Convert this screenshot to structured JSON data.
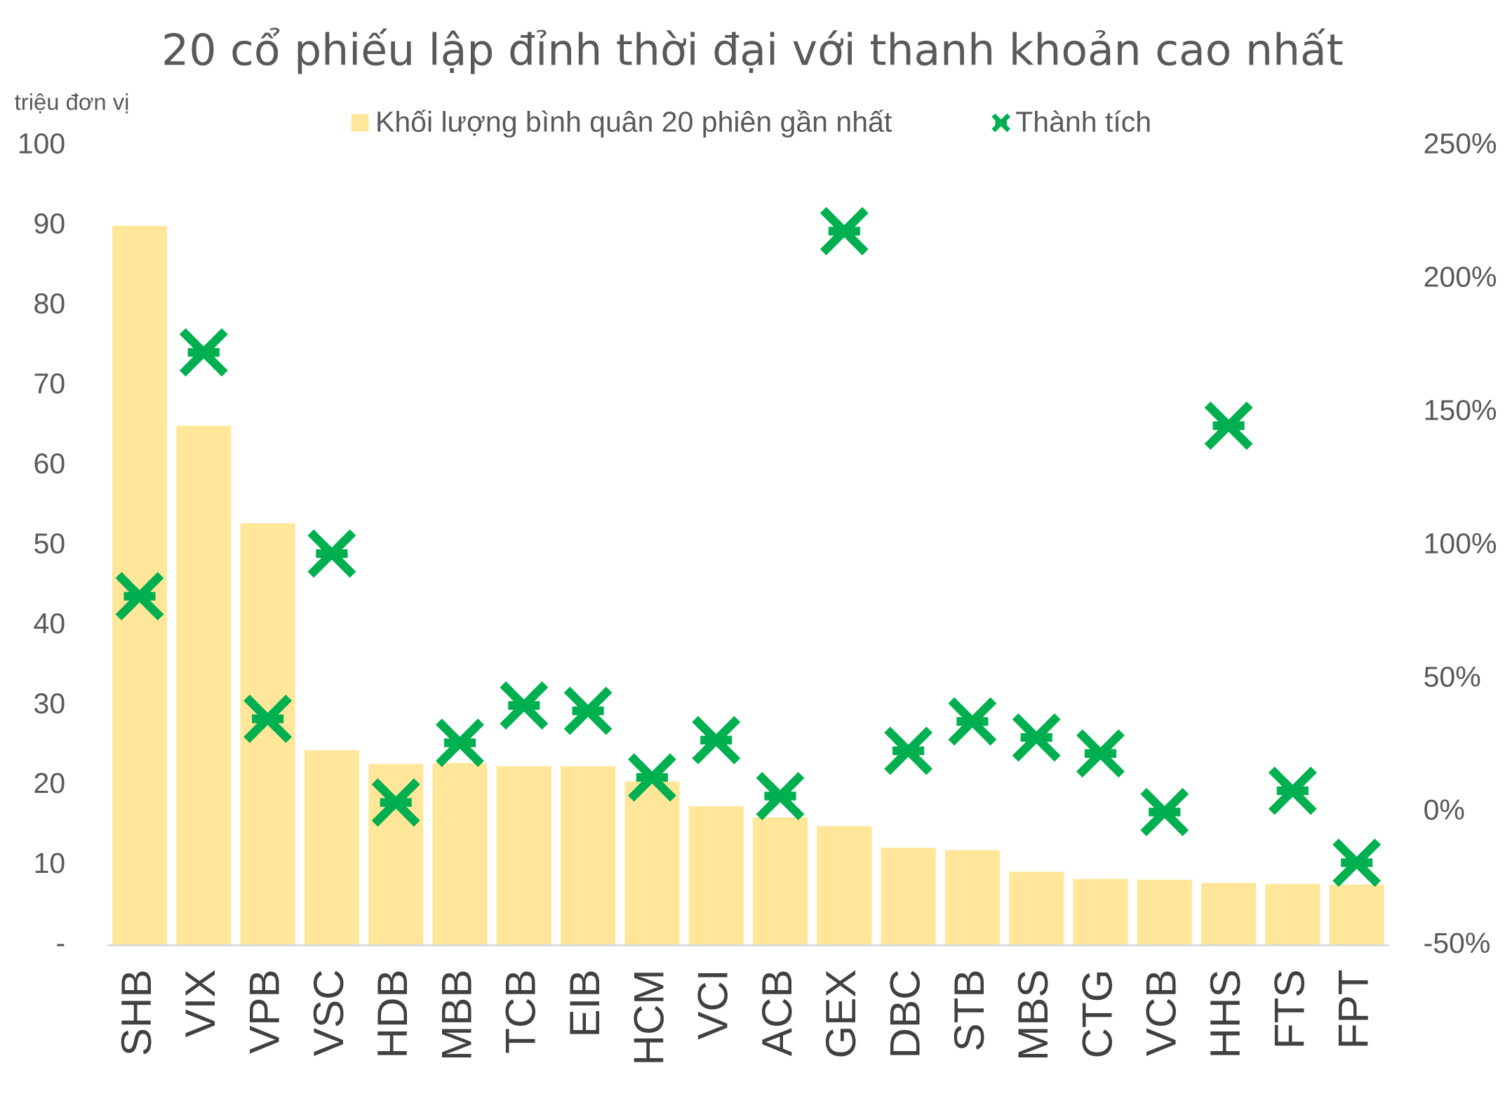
{
  "chart_data": {
    "type": "bar_scatter",
    "title": "20 cổ phiếu lập đỉnh thời đại với thanh khoản cao nhất",
    "y_label": "triệu đơn vị",
    "categories": [
      "SHB",
      "VIX",
      "VPB",
      "VSC",
      "HDB",
      "MBB",
      "TCB",
      "EIB",
      "HCM",
      "VCI",
      "ACB",
      "GEX",
      "DBC",
      "STB",
      "MBS",
      "CTG",
      "VCB",
      "HHS",
      "FTS",
      "FPT"
    ],
    "series": [
      {
        "name": "Khối lượng bình quân 20 phiên gần nhất",
        "color": "#FFE699",
        "kind": "bar",
        "values": [
          90,
          65,
          52.8,
          24.4,
          22.7,
          22.8,
          22.4,
          22.4,
          20.5,
          17.4,
          16,
          14.9,
          12.2,
          11.9,
          9.2,
          8.3,
          8.2,
          7.8,
          7.7,
          7.6
        ]
      },
      {
        "name": "Thành tích",
        "color": "#00B050",
        "kind": "marker",
        "axis": "y2",
        "values": [
          81,
          172.5,
          35,
          97,
          3.6,
          26,
          40,
          38,
          13,
          27,
          6,
          218,
          23,
          34,
          28,
          22,
          0,
          145,
          8,
          -19
        ]
      }
    ],
    "ylim": [
      0,
      100
    ],
    "yticks": [
      {
        "value": 0,
        "label": "-"
      },
      10,
      20,
      30,
      40,
      50,
      60,
      70,
      80,
      90,
      100
    ],
    "y2lim": [
      -50,
      250
    ],
    "y2ticks": [
      {
        "value": -50,
        "label": "-50%"
      },
      {
        "value": 0,
        "label": "0%"
      },
      {
        "value": 50,
        "label": "50%"
      },
      {
        "value": 100,
        "label": "100%"
      },
      {
        "value": 150,
        "label": "150%"
      },
      {
        "value": 200,
        "label": "200%"
      },
      {
        "value": 250,
        "label": "250%"
      }
    ]
  }
}
